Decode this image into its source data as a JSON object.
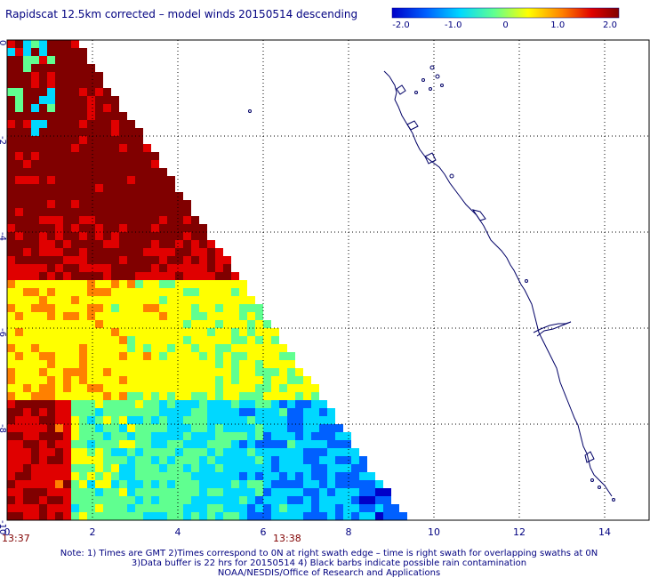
{
  "title": "Rapidscat 12.5km corrected – model winds 20150514 descending",
  "colorbar": {
    "ticks": [
      "-2.0",
      "-1.0",
      "0",
      "1.0",
      "2.0"
    ],
    "range": [
      -2.0,
      2.0
    ],
    "colors": [
      "#0000c8",
      "#0060ff",
      "#00d8ff",
      "#60ff90",
      "#ffff00",
      "#ff8000",
      "#e00000",
      "#800000"
    ]
  },
  "axes": {
    "x_ticks": [
      "0",
      "2",
      "4",
      "6",
      "8",
      "10",
      "12",
      "14"
    ],
    "y_ticks": [
      "0",
      "-2",
      "-4",
      "-6",
      "-8",
      "-10"
    ],
    "x_range": [
      0,
      15
    ],
    "y_range": [
      0,
      -11
    ]
  },
  "time_labels": {
    "start": "13:37",
    "end": "13:38"
  },
  "notes": {
    "line1": "Note: 1) Times are GMT 2)Times correspond to 0N at right swath edge – time is right swath for overlapping swaths at 0N",
    "line2": "3)Data buffer is 22 hrs for 20150514 4) Black barbs indicate possible rain contamination",
    "line3": "NOAA/NESDIS/Office of Research and Applications"
  },
  "colors": {
    "text": "#000080",
    "time": "#800000",
    "grid": "#000000",
    "coast": "#000066"
  }
}
